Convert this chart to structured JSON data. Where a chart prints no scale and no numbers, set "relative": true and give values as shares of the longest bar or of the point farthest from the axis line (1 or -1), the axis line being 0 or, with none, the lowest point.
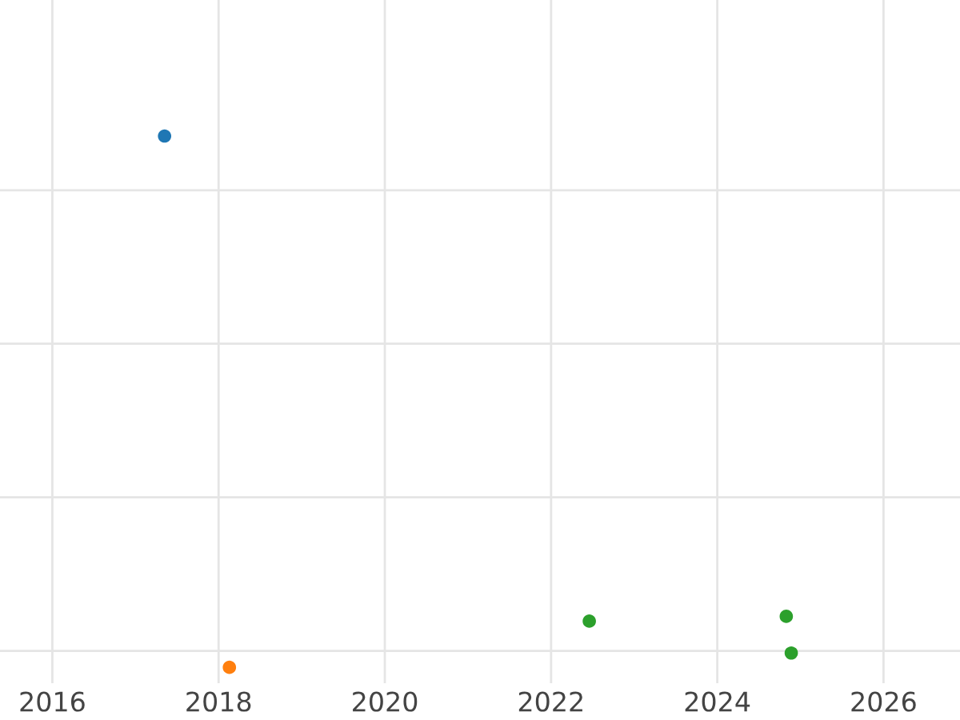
{
  "chart_data": {
    "type": "scatter",
    "relative": true,
    "grid": true,
    "tick_labels": "x",
    "marker": "circle",
    "xlim": [
      2015.37,
      2026.92
    ],
    "xticks": [
      2016,
      2018,
      2020,
      2022,
      2024,
      2026
    ],
    "series": [
      {
        "color": "#1f77b4",
        "x": [
          2017.35
        ],
        "values": [
          1
        ]
      },
      {
        "color": "#ff7f0e",
        "x": [
          2018.13
        ],
        "values": [
          0
        ]
      },
      {
        "color": "#2ca02c",
        "x": [
          2022.46,
          2024.83,
          2024.89
        ],
        "values": [
          0.087,
          0.096,
          0.027
        ]
      }
    ]
  }
}
